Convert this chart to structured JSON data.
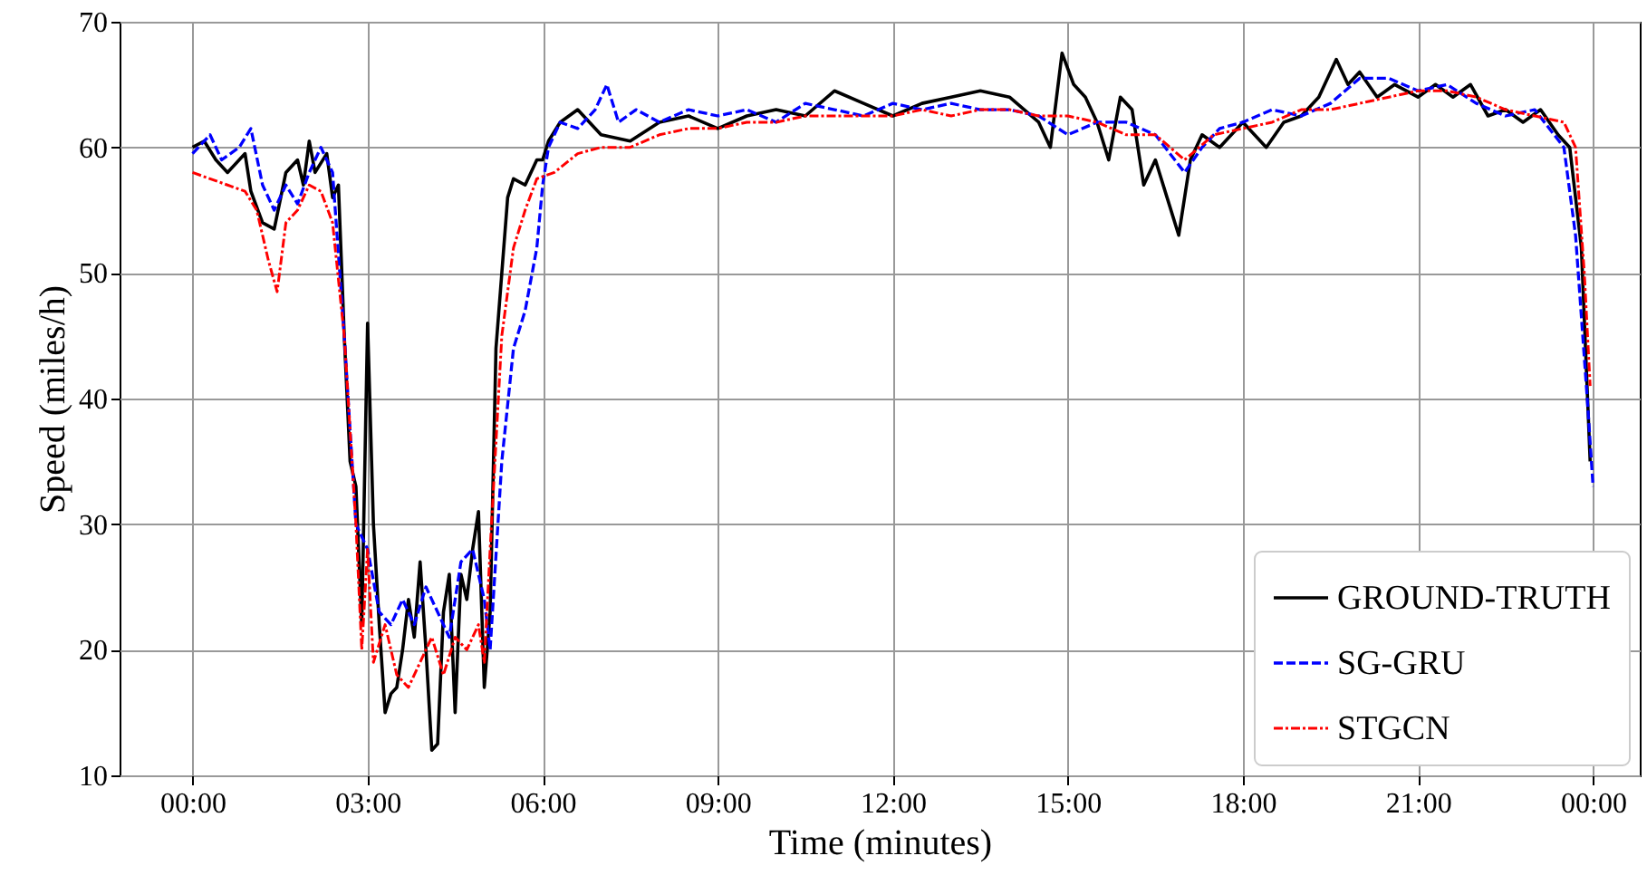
{
  "chart_data": {
    "type": "line",
    "xlabel": "Time (minutes)",
    "ylabel": "Speed (miles/h)",
    "xlim": [
      -1.25,
      24.8
    ],
    "ylim": [
      10,
      70
    ],
    "xticks": [
      {
        "value": 0,
        "label": "00:00"
      },
      {
        "value": 3,
        "label": "03:00"
      },
      {
        "value": 6,
        "label": "06:00"
      },
      {
        "value": 9,
        "label": "09:00"
      },
      {
        "value": 12,
        "label": "12:00"
      },
      {
        "value": 15,
        "label": "15:00"
      },
      {
        "value": 18,
        "label": "18:00"
      },
      {
        "value": 21,
        "label": "21:00"
      },
      {
        "value": 24,
        "label": "00:00"
      }
    ],
    "yticks": [
      10,
      20,
      30,
      40,
      50,
      60,
      70
    ],
    "grid": true,
    "legend": "bottom right",
    "marker": "none",
    "series": [
      {
        "name": "GROUND-TRUTH",
        "color": "#000000",
        "line_style": "solid",
        "x": [
          0,
          0.2,
          0.4,
          0.6,
          0.9,
          1.0,
          1.2,
          1.4,
          1.6,
          1.8,
          1.9,
          2.0,
          2.1,
          2.3,
          2.4,
          2.5,
          2.6,
          2.7,
          2.8,
          2.9,
          3.0,
          3.1,
          3.2,
          3.3,
          3.4,
          3.5,
          3.6,
          3.7,
          3.8,
          3.9,
          4.0,
          4.1,
          4.2,
          4.3,
          4.4,
          4.5,
          4.6,
          4.7,
          4.8,
          4.9,
          5.0,
          5.1,
          5.2,
          5.3,
          5.4,
          5.5,
          5.7,
          5.9,
          6.0,
          6.1,
          6.3,
          6.6,
          7.0,
          7.5,
          8.0,
          8.5,
          9.0,
          9.5,
          10.0,
          10.5,
          11.0,
          11.5,
          12.0,
          12.5,
          13.0,
          13.5,
          14.0,
          14.5,
          14.7,
          14.9,
          15.1,
          15.3,
          15.5,
          15.7,
          15.9,
          16.1,
          16.3,
          16.5,
          16.7,
          16.9,
          17.1,
          17.3,
          17.6,
          18.0,
          18.4,
          18.7,
          19.0,
          19.3,
          19.6,
          19.8,
          20.0,
          20.3,
          20.6,
          21.0,
          21.3,
          21.6,
          21.9,
          22.2,
          22.5,
          22.8,
          23.1,
          23.4,
          23.6,
          23.8,
          23.95
        ],
        "values": [
          60,
          60.5,
          59,
          58,
          59.5,
          56.5,
          54,
          53.5,
          58,
          59,
          57,
          60.5,
          58,
          59.5,
          56,
          57,
          45,
          35,
          33,
          22,
          46,
          30,
          22,
          15,
          16.5,
          17,
          20,
          24,
          21,
          27,
          20,
          12,
          12.5,
          23,
          26,
          15,
          26,
          24,
          28,
          31,
          17,
          23,
          44,
          50,
          56,
          57.5,
          57,
          59,
          59,
          60.5,
          62,
          63,
          61,
          60.5,
          62,
          62.5,
          61.5,
          62.5,
          63,
          62.5,
          64.5,
          63.5,
          62.5,
          63.5,
          64,
          64.5,
          64,
          62,
          60,
          67.5,
          65,
          64,
          62,
          59,
          64,
          63,
          57,
          59,
          56,
          53,
          59,
          61,
          60,
          62,
          60,
          62,
          62.5,
          64,
          67,
          65,
          66,
          64,
          65,
          64,
          65,
          64,
          65,
          62.5,
          63,
          62,
          63,
          61,
          60,
          52,
          35
        ]
      },
      {
        "name": "SG-GRU",
        "color": "#0000ff",
        "line_style": "dashed",
        "x": [
          0,
          0.3,
          0.5,
          0.8,
          1.0,
          1.2,
          1.4,
          1.6,
          1.8,
          2.0,
          2.2,
          2.4,
          2.6,
          2.8,
          3.0,
          3.2,
          3.4,
          3.6,
          3.8,
          4.0,
          4.2,
          4.4,
          4.6,
          4.8,
          5.0,
          5.1,
          5.3,
          5.5,
          5.7,
          5.9,
          6.0,
          6.1,
          6.3,
          6.6,
          6.9,
          7.1,
          7.3,
          7.6,
          8.0,
          8.5,
          9.0,
          9.5,
          10.0,
          10.5,
          11.0,
          11.5,
          12.0,
          12.5,
          13.0,
          13.5,
          14.0,
          14.5,
          15.0,
          15.5,
          16.0,
          16.5,
          17.0,
          17.3,
          17.6,
          18.0,
          18.5,
          19.0,
          19.5,
          20.0,
          20.5,
          21.0,
          21.5,
          22.0,
          22.5,
          23.0,
          23.5,
          23.7,
          23.9,
          24.0
        ],
        "values": [
          59.5,
          61,
          59,
          60,
          61.5,
          57,
          55,
          57,
          55.5,
          58,
          60,
          58,
          45,
          30,
          28,
          23,
          22,
          24,
          22,
          25,
          23,
          21,
          27,
          28,
          24,
          20,
          35,
          44,
          47,
          52,
          57,
          60,
          62,
          61.5,
          63,
          65,
          62,
          63,
          62,
          63,
          62.5,
          63,
          62,
          63.5,
          63,
          62.5,
          63.5,
          63,
          63.5,
          63,
          63,
          62.5,
          61,
          62,
          62,
          61,
          58,
          60,
          61.5,
          62,
          63,
          62.5,
          63.5,
          65.5,
          65.5,
          64.5,
          65,
          63.5,
          62.5,
          63,
          60,
          53,
          40,
          33
        ]
      },
      {
        "name": "STGCN",
        "color": "#ff0000",
        "line_style": "dashdot",
        "x": [
          0,
          0.3,
          0.6,
          0.9,
          1.1,
          1.3,
          1.45,
          1.6,
          1.8,
          2.0,
          2.2,
          2.4,
          2.6,
          2.8,
          2.9,
          3.0,
          3.1,
          3.3,
          3.5,
          3.7,
          3.9,
          4.1,
          4.3,
          4.5,
          4.7,
          4.9,
          5.0,
          5.1,
          5.3,
          5.5,
          5.7,
          5.9,
          6.2,
          6.6,
          7.0,
          7.5,
          8.0,
          8.5,
          9.0,
          9.5,
          10.0,
          10.5,
          11.0,
          11.5,
          12.0,
          12.5,
          13.0,
          13.5,
          14.0,
          14.5,
          15.0,
          15.5,
          16.0,
          16.5,
          17.0,
          17.5,
          18.0,
          18.5,
          19.0,
          19.5,
          20.0,
          20.5,
          21.0,
          21.5,
          22.0,
          22.5,
          23.0,
          23.5,
          23.7,
          23.85,
          23.95
        ],
        "values": [
          58,
          57.5,
          57,
          56.5,
          55,
          51,
          48.5,
          54,
          55,
          57,
          56.5,
          54,
          45,
          30,
          20,
          28,
          19,
          22,
          18,
          17,
          19,
          21,
          18,
          21,
          20,
          22,
          19,
          28,
          45,
          52,
          55,
          57.5,
          58,
          59.5,
          60,
          60,
          61,
          61.5,
          61.5,
          62,
          62,
          62.5,
          62.5,
          62.5,
          62.5,
          63,
          62.5,
          63,
          63,
          62.5,
          62.5,
          62,
          61,
          61,
          59,
          61,
          61.5,
          62,
          63,
          63,
          63.5,
          64,
          64.5,
          64.5,
          64,
          63,
          62.5,
          62,
          60,
          50,
          41
        ]
      }
    ]
  }
}
